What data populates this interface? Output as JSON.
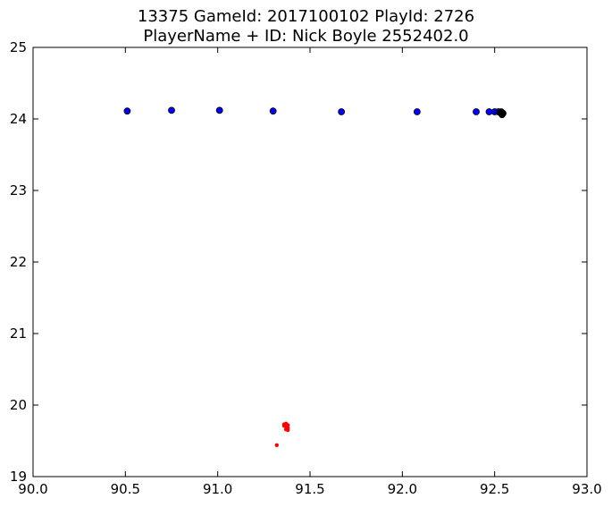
{
  "chart_data": {
    "type": "scatter",
    "title_line1": "13375 GameId: 2017100102 PlayId: 2726",
    "title_line2": "PlayerName + ID: Nick Boyle 2552402.0",
    "xlabel": "",
    "ylabel": "",
    "xlim": [
      90.0,
      93.0
    ],
    "ylim": [
      19,
      25
    ],
    "xticks": [
      "90.0",
      "90.5",
      "91.0",
      "91.5",
      "92.0",
      "92.5",
      "93.0"
    ],
    "yticks": [
      "19",
      "20",
      "21",
      "22",
      "23",
      "24",
      "25"
    ],
    "grid": false,
    "series": [
      {
        "color": "#0000ff",
        "marker": "large-circle",
        "points": [
          [
            90.51,
            24.11
          ],
          [
            90.75,
            24.12
          ],
          [
            91.01,
            24.12
          ],
          [
            91.3,
            24.11
          ],
          [
            91.67,
            24.1
          ],
          [
            92.08,
            24.1
          ],
          [
            92.4,
            24.1
          ],
          [
            92.47,
            24.1
          ],
          [
            92.5,
            24.1
          ],
          [
            92.52,
            24.1
          ]
        ]
      },
      {
        "color": "#000000",
        "marker": "large-circle",
        "points": [
          [
            92.53,
            24.09
          ],
          [
            92.535,
            24.08
          ],
          [
            92.54,
            24.07
          ],
          [
            92.54,
            24.06
          ],
          [
            92.535,
            24.1
          ],
          [
            92.545,
            24.08
          ]
        ]
      },
      {
        "color": "#ff0000",
        "marker": "small-dot",
        "points": [
          [
            91.32,
            19.44
          ],
          [
            91.36,
            19.73
          ],
          [
            91.37,
            19.74
          ],
          [
            91.38,
            19.72
          ],
          [
            91.37,
            19.7
          ],
          [
            91.38,
            19.68
          ],
          [
            91.37,
            19.66
          ],
          [
            91.38,
            19.65
          ],
          [
            91.36,
            19.71
          ],
          [
            91.37,
            19.72
          ]
        ]
      }
    ]
  }
}
